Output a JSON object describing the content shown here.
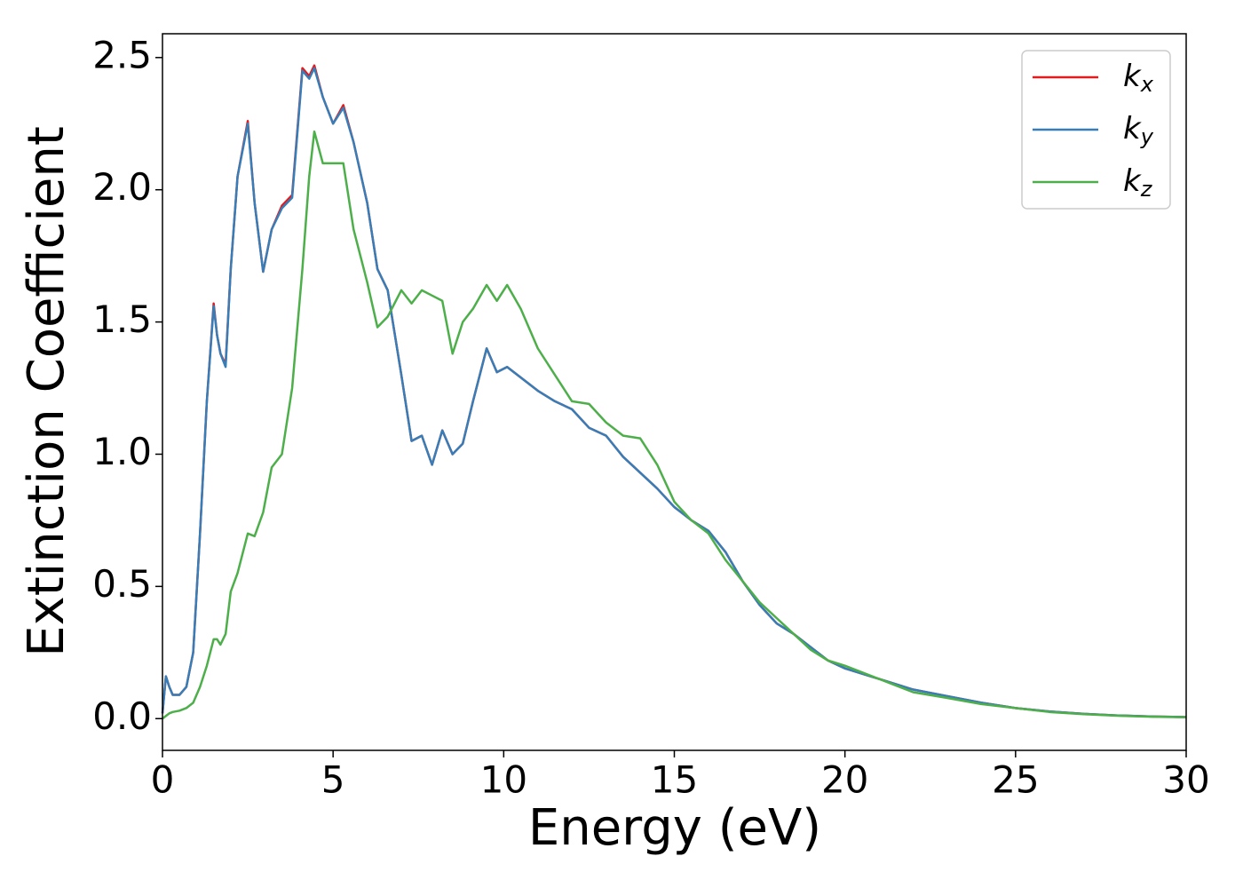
{
  "chart_data": {
    "type": "line",
    "xlabel": "Energy (eV)",
    "ylabel": "Extinction Coefficient",
    "x": [
      0,
      0.1,
      0.2,
      0.3,
      0.5,
      0.7,
      0.9,
      1.1,
      1.3,
      1.5,
      1.6,
      1.7,
      1.85,
      2.0,
      2.2,
      2.5,
      2.7,
      2.95,
      3.2,
      3.5,
      3.8,
      4.1,
      4.3,
      4.45,
      4.7,
      5.0,
      5.3,
      5.6,
      6.0,
      6.3,
      6.6,
      7.0,
      7.3,
      7.6,
      7.9,
      8.2,
      8.5,
      8.8,
      9.1,
      9.5,
      9.8,
      10.1,
      10.5,
      11.0,
      11.5,
      12.0,
      12.5,
      13.0,
      13.5,
      14.0,
      14.5,
      15,
      15.5,
      16,
      16.5,
      17,
      17.5,
      18,
      18.5,
      19,
      19.5,
      20,
      21,
      22,
      23,
      24,
      25,
      26,
      27,
      28,
      29,
      30
    ],
    "series": [
      {
        "name": "kx",
        "color": "#e41a1c",
        "values": [
          0.02,
          0.16,
          0.12,
          0.09,
          0.09,
          0.12,
          0.25,
          0.7,
          1.2,
          1.57,
          1.45,
          1.38,
          1.34,
          1.7,
          2.05,
          2.26,
          1.95,
          1.69,
          1.85,
          1.94,
          1.98,
          2.46,
          2.43,
          2.47,
          2.35,
          2.25,
          2.32,
          2.18,
          1.95,
          1.7,
          1.62,
          1.3,
          1.05,
          1.07,
          0.96,
          1.09,
          1.0,
          1.04,
          1.2,
          1.4,
          1.31,
          1.33,
          1.29,
          1.24,
          1.2,
          1.17,
          1.1,
          1.07,
          0.99,
          0.93,
          0.87,
          0.8,
          0.75,
          0.71,
          0.63,
          0.52,
          0.43,
          0.36,
          0.32,
          0.27,
          0.22,
          0.19,
          0.15,
          0.11,
          0.085,
          0.06,
          0.04,
          0.027,
          0.018,
          0.012,
          0.008,
          0.006
        ]
      },
      {
        "name": "ky",
        "color": "#377eb8",
        "values": [
          0.02,
          0.16,
          0.12,
          0.09,
          0.09,
          0.12,
          0.25,
          0.7,
          1.2,
          1.56,
          1.45,
          1.38,
          1.33,
          1.7,
          2.05,
          2.25,
          1.95,
          1.69,
          1.85,
          1.93,
          1.97,
          2.45,
          2.42,
          2.46,
          2.35,
          2.25,
          2.31,
          2.18,
          1.95,
          1.7,
          1.62,
          1.3,
          1.05,
          1.07,
          0.96,
          1.09,
          1.0,
          1.04,
          1.2,
          1.4,
          1.31,
          1.33,
          1.29,
          1.24,
          1.2,
          1.17,
          1.1,
          1.07,
          0.99,
          0.93,
          0.87,
          0.8,
          0.75,
          0.71,
          0.63,
          0.52,
          0.43,
          0.36,
          0.32,
          0.27,
          0.22,
          0.19,
          0.15,
          0.11,
          0.085,
          0.06,
          0.04,
          0.027,
          0.018,
          0.012,
          0.008,
          0.006
        ]
      },
      {
        "name": "kz",
        "color": "#4daf4a",
        "values": [
          0.0,
          0.01,
          0.02,
          0.025,
          0.03,
          0.04,
          0.06,
          0.12,
          0.2,
          0.3,
          0.3,
          0.28,
          0.32,
          0.48,
          0.55,
          0.7,
          0.69,
          0.78,
          0.95,
          1.0,
          1.25,
          1.7,
          2.05,
          2.22,
          2.1,
          2.1,
          2.1,
          1.85,
          1.65,
          1.48,
          1.52,
          1.62,
          1.57,
          1.62,
          1.6,
          1.58,
          1.38,
          1.5,
          1.55,
          1.64,
          1.58,
          1.64,
          1.55,
          1.4,
          1.3,
          1.2,
          1.19,
          1.12,
          1.07,
          1.06,
          0.96,
          0.82,
          0.75,
          0.7,
          0.6,
          0.52,
          0.44,
          0.38,
          0.32,
          0.26,
          0.22,
          0.2,
          0.15,
          0.1,
          0.078,
          0.055,
          0.04,
          0.025,
          0.017,
          0.011,
          0.007,
          0.005
        ]
      }
    ],
    "xlim": [
      0,
      30
    ],
    "xticks": [
      0,
      5,
      10,
      15,
      20,
      25,
      30
    ],
    "ylim": [
      -0.12,
      2.59
    ],
    "yticks": [
      {
        "value": 0,
        "label": "0.0"
      },
      0.5,
      {
        "value": 1,
        "label": "1.0"
      },
      1.5,
      {
        "value": 2,
        "label": "2.0"
      },
      2.5
    ],
    "grid": false,
    "legend": "upper right"
  }
}
